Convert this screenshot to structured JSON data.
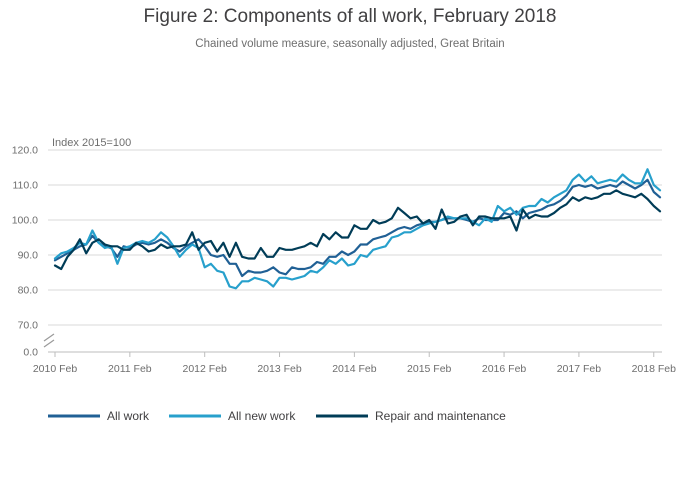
{
  "title": "Figure 2: Components of all work, February 2018",
  "subtitle": "Chained volume measure, seasonally adjusted, Great Britain",
  "chart_data": {
    "type": "line",
    "title": "Figure 2: Components of all work, February 2018",
    "subtitle": "Chained volume measure, seasonally adjusted, Great Britain",
    "ylabel": "Index 2015=100",
    "xlabel": "",
    "ylim": [
      0,
      120
    ],
    "axis_break": [
      0,
      70
    ],
    "y_ticks": [
      "0.0",
      "70.0",
      "80.0",
      "90.0",
      "100.0",
      "110.0",
      "120.0"
    ],
    "x_ticks": [
      "2010 Feb",
      "2011 Feb",
      "2012 Feb",
      "2013 Feb",
      "2014 Feb",
      "2015 Feb",
      "2016 Feb",
      "2017 Feb",
      "2018 Feb"
    ],
    "x_start": "2010 Feb",
    "x_end": "2018 Feb",
    "grid": true,
    "legend_position": "bottom",
    "series": [
      {
        "name": "All work",
        "color": "#206095",
        "values": [
          88.5,
          89.5,
          90.5,
          91.5,
          92.5,
          93.0,
          95.5,
          93.5,
          92.5,
          92.0,
          89.5,
          92.5,
          92.0,
          93.0,
          93.5,
          93.0,
          93.5,
          94.5,
          93.5,
          92.0,
          91.0,
          92.5,
          93.5,
          94.5,
          92.5,
          90.0,
          89.5,
          90.0,
          87.5,
          87.5,
          84.0,
          85.5,
          85.0,
          85.0,
          85.5,
          86.5,
          85.0,
          84.5,
          86.5,
          86.0,
          86.0,
          86.5,
          88.0,
          87.5,
          89.5,
          89.5,
          91.0,
          90.0,
          91.0,
          93.0,
          93.0,
          94.5,
          95.0,
          95.5,
          96.5,
          97.5,
          98.0,
          97.5,
          98.5,
          99.0,
          99.5,
          99.5,
          100.0,
          100.5,
          100.5,
          100.5,
          100.0,
          99.5,
          100.5,
          100.0,
          100.0,
          100.0,
          102.0,
          101.5,
          102.5,
          100.5,
          102.0,
          102.5,
          103.0,
          104.0,
          104.5,
          105.5,
          107.0,
          109.5,
          110.0,
          109.5,
          110.0,
          109.0,
          109.5,
          110.0,
          109.5,
          111.0,
          110.0,
          109.0,
          110.0,
          111.5,
          108.0,
          106.5
        ]
      },
      {
        "name": "All new work",
        "color": "#27a0cc",
        "values": [
          89.0,
          90.5,
          91.0,
          92.0,
          93.5,
          93.0,
          97.0,
          93.5,
          92.0,
          92.5,
          87.5,
          92.0,
          92.5,
          93.5,
          94.0,
          93.5,
          94.5,
          96.5,
          95.0,
          92.5,
          89.5,
          91.5,
          93.0,
          92.0,
          86.5,
          87.5,
          85.5,
          85.0,
          81.0,
          80.5,
          82.5,
          82.5,
          83.5,
          83.0,
          82.5,
          81.0,
          83.5,
          83.5,
          83.0,
          83.5,
          84.0,
          85.5,
          85.0,
          86.5,
          88.5,
          87.5,
          89.0,
          87.0,
          87.5,
          90.0,
          89.5,
          91.5,
          92.0,
          92.5,
          95.0,
          95.5,
          96.5,
          96.5,
          97.5,
          98.5,
          99.0,
          99.5,
          100.0,
          101.0,
          100.5,
          100.5,
          100.5,
          99.5,
          98.5,
          100.5,
          99.5,
          104.0,
          102.5,
          103.5,
          101.5,
          103.5,
          104.0,
          104.0,
          106.0,
          105.0,
          106.5,
          107.5,
          108.5,
          111.5,
          113.0,
          111.0,
          112.5,
          110.5,
          111.0,
          111.5,
          111.0,
          113.0,
          111.5,
          110.5,
          110.5,
          114.5,
          110.0,
          108.5
        ]
      },
      {
        "name": "Repair and maintenance",
        "color": "#003c57",
        "values": [
          87.0,
          86.0,
          89.5,
          91.5,
          94.5,
          90.5,
          93.5,
          94.5,
          93.0,
          92.5,
          92.5,
          91.5,
          91.5,
          93.5,
          92.5,
          91.0,
          91.5,
          93.0,
          92.0,
          92.5,
          92.5,
          93.0,
          96.5,
          91.5,
          93.5,
          94.0,
          91.0,
          93.5,
          89.5,
          93.5,
          89.5,
          89.0,
          89.0,
          92.0,
          89.5,
          89.5,
          92.0,
          91.5,
          91.5,
          92.0,
          92.5,
          93.5,
          92.5,
          96.0,
          94.5,
          96.5,
          95.0,
          95.0,
          98.5,
          97.5,
          97.5,
          100.0,
          99.0,
          99.5,
          100.5,
          103.5,
          102.0,
          100.5,
          101.0,
          99.0,
          100.0,
          97.5,
          103.0,
          99.0,
          99.5,
          101.0,
          101.5,
          98.5,
          101.0,
          101.0,
          100.5,
          100.5,
          100.5,
          101.0,
          97.0,
          103.0,
          100.5,
          101.5,
          101.0,
          101.0,
          102.0,
          103.5,
          104.5,
          106.5,
          105.5,
          106.5,
          106.0,
          106.5,
          107.5,
          107.5,
          108.5,
          107.5,
          107.0,
          106.5,
          107.5,
          106.0,
          104.0,
          102.5
        ]
      }
    ]
  }
}
